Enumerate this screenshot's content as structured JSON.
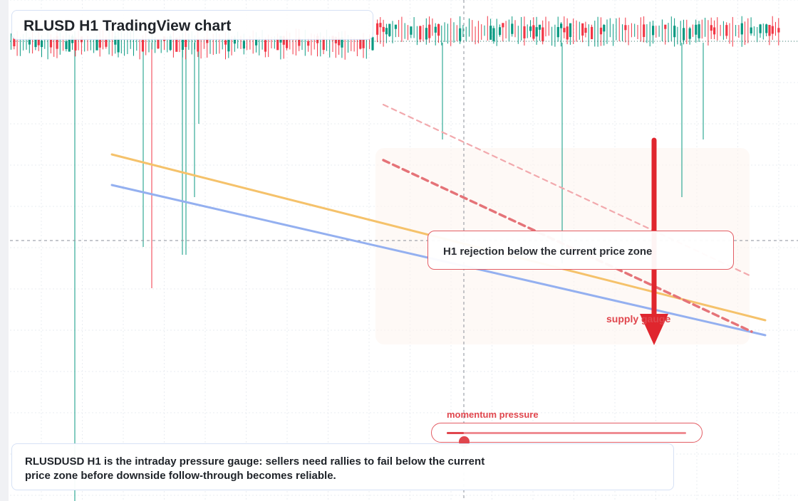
{
  "header": {
    "title": "RLUSD H1 TradingView chart"
  },
  "chart_data": {
    "type": "candlestick",
    "symbol": "RLUSD",
    "timeframe": "H1",
    "grid": true,
    "current_price_line": "dashed grey horizontal",
    "trendlines": [
      {
        "name": "",
        "color": "#f5c26b",
        "style": "solid",
        "direction": "descending"
      },
      {
        "name": "",
        "color": "#94b0f0",
        "style": "solid",
        "direction": "descending"
      },
      {
        "name": "",
        "color": "#e57378",
        "style": "dashed",
        "direction": "descending"
      },
      {
        "name": "",
        "color": "#f2a9ad",
        "style": "dashed",
        "direction": "descending"
      }
    ],
    "arrow": {
      "direction": "down",
      "color": "#e0262e"
    },
    "colors": {
      "bull": "#089981",
      "bear": "#f23645"
    }
  },
  "annotations": {
    "callout": "H1 rejection below the current price zone",
    "supply_label": "supply gauge"
  },
  "gauge": {
    "label": "momentum pressure",
    "value": 0.07
  },
  "note": {
    "text": "RLUSDUSD H1 is the intraday pressure gauge: sellers need rallies to fail below the current price zone before downside follow-through becomes reliable."
  }
}
